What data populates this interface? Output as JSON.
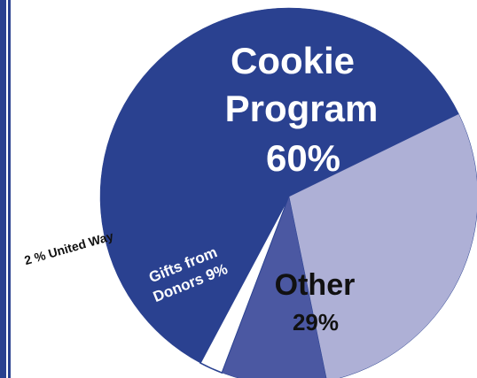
{
  "chart_data": {
    "type": "pie",
    "slices": [
      {
        "label": "Cookie Program",
        "value_label": "60%",
        "value": 60,
        "color": "#2a4190"
      },
      {
        "label": "Other",
        "value_label": "29%",
        "value": 29,
        "color": "#aeb0d6"
      },
      {
        "label": "Gifts from Donors",
        "value_label": "9%",
        "value": 9,
        "color": "#4b58a2"
      },
      {
        "label": "United Way",
        "value_label": "2 %",
        "value": 2,
        "color": "#ffffff"
      }
    ],
    "labels": {
      "cookie_line1": "Cookie",
      "cookie_line2": "Program",
      "cookie_pct": "60%",
      "other_name": "Other",
      "other_pct": "29%",
      "gifts_line1": "Gifts from",
      "gifts_line2": "Donors 9%",
      "united_way": "2 % United Way"
    }
  },
  "frame": {
    "border_color": "#2a4190",
    "slice_outline_color": "#2a4190"
  }
}
